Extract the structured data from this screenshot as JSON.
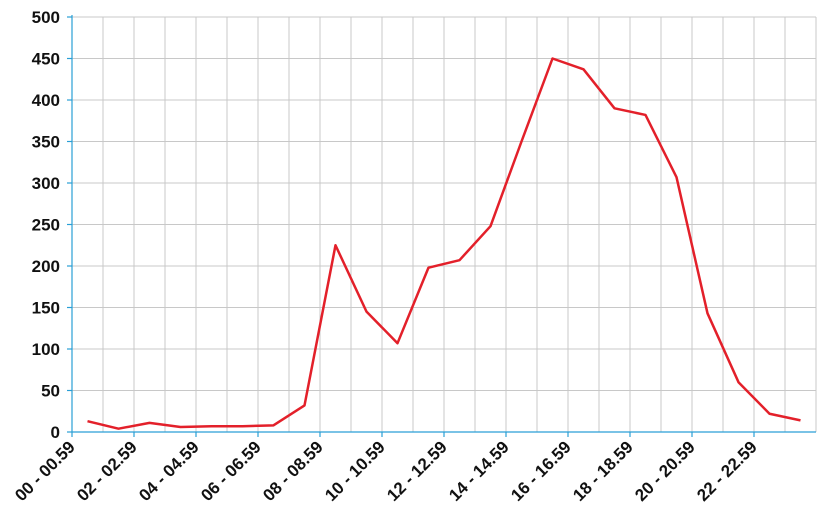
{
  "chart_data": {
    "type": "line",
    "categories": [
      "00 - 00.59",
      null,
      "02 - 02.59",
      null,
      "04 - 04.59",
      null,
      "06 - 06.59",
      null,
      "08 - 08.59",
      null,
      "10 - 10.59",
      null,
      "12 - 12.59",
      null,
      "14 - 14.59",
      null,
      "16 - 16.59",
      null,
      "18 - 18.59",
      null,
      "20 - 20.59",
      null,
      "22 - 22.59",
      null
    ],
    "series": [
      {
        "color": "#e3202a",
        "values": [
          13,
          4,
          11,
          6,
          7,
          7,
          8,
          32,
          225,
          145,
          107,
          198,
          207,
          248,
          350,
          450,
          437,
          390,
          382,
          307,
          143,
          60,
          22,
          14
        ]
      }
    ],
    "ylim": [
      0,
      500
    ],
    "yticks": [
      0,
      50,
      100,
      150,
      200,
      250,
      300,
      350,
      400,
      450,
      500
    ],
    "grid": true
  }
}
